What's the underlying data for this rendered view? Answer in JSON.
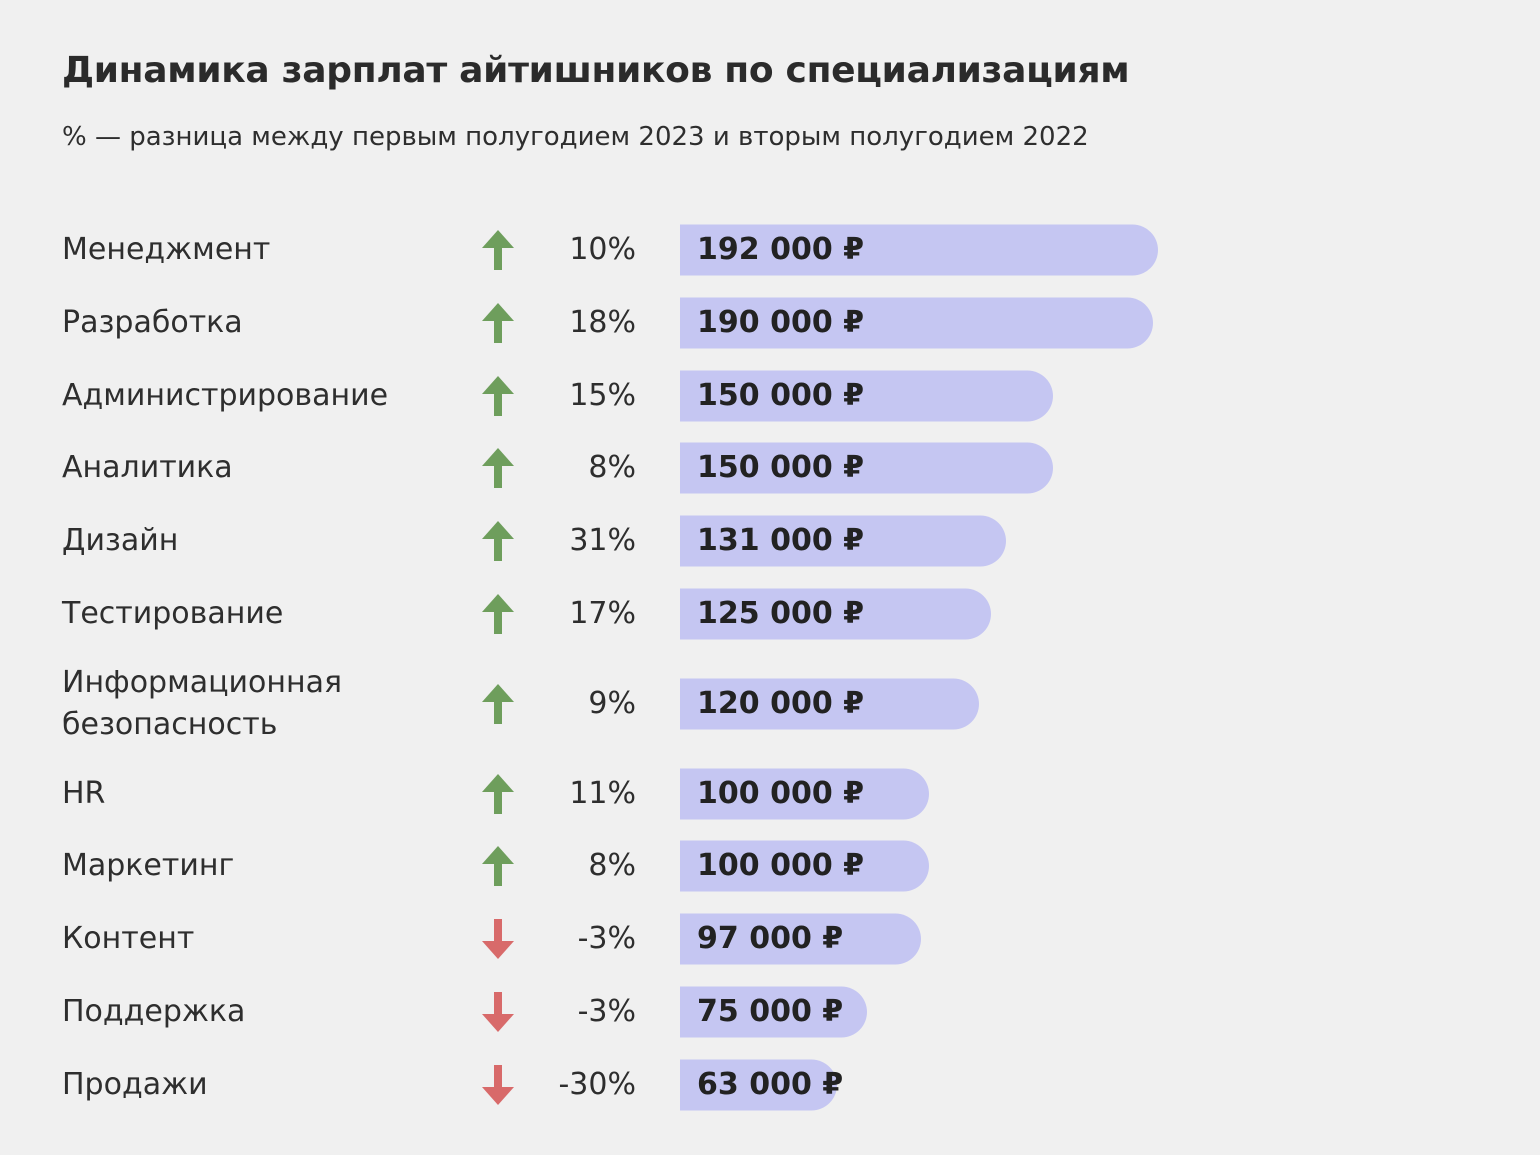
{
  "chart_data": {
    "type": "bar",
    "orientation": "horizontal",
    "title": "Динамика зарплат айтишников по специализациям",
    "subtitle": "% — разница между первым полугодием 2023 и вторым полугодием 2022",
    "xlim": [
      0,
      192000
    ],
    "colors": {
      "bar": "#c5c6f2",
      "up": "#6e9e5c",
      "down": "#d86a6a"
    },
    "rows": [
      {
        "category": [
          "Менеджмент"
        ],
        "change": 10,
        "change_label": "10%",
        "value": 192000,
        "value_label": "192 000 ₽"
      },
      {
        "category": [
          "Разработка"
        ],
        "change": 18,
        "change_label": "18%",
        "value": 190000,
        "value_label": "190 000 ₽"
      },
      {
        "category": [
          "Администрирование"
        ],
        "change": 15,
        "change_label": "15%",
        "value": 150000,
        "value_label": "150 000 ₽"
      },
      {
        "category": [
          "Аналитика"
        ],
        "change": 8,
        "change_label": "8%",
        "value": 150000,
        "value_label": "150 000 ₽"
      },
      {
        "category": [
          "Дизайн"
        ],
        "change": 31,
        "change_label": "31%",
        "value": 131000,
        "value_label": "131 000 ₽"
      },
      {
        "category": [
          "Тестирование"
        ],
        "change": 17,
        "change_label": "17%",
        "value": 125000,
        "value_label": "125 000 ₽"
      },
      {
        "category": [
          "Информационная",
          "безопасность"
        ],
        "change": 9,
        "change_label": "9%",
        "value": 120000,
        "value_label": "120 000 ₽"
      },
      {
        "category": [
          "HR"
        ],
        "change": 11,
        "change_label": "11%",
        "value": 100000,
        "value_label": "100 000 ₽"
      },
      {
        "category": [
          "Маркетинг"
        ],
        "change": 8,
        "change_label": "8%",
        "value": 100000,
        "value_label": "100 000 ₽"
      },
      {
        "category": [
          "Контент"
        ],
        "change": -3,
        "change_label": "-3%",
        "value": 97000,
        "value_label": "97 000 ₽"
      },
      {
        "category": [
          "Поддержка"
        ],
        "change": -3,
        "change_label": "-3%",
        "value": 75000,
        "value_label": "75 000 ₽"
      },
      {
        "category": [
          "Продажи"
        ],
        "change": -30,
        "change_label": "-30%",
        "value": 63000,
        "value_label": "63 000 ₽"
      }
    ]
  }
}
